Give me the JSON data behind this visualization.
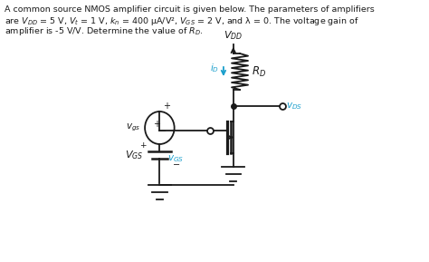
{
  "bg_color": "#ffffff",
  "line_color": "#1a1a1a",
  "cyan_color": "#1a9fcc",
  "text_line1": "A common source NMOS amplifier circuit is given below. The parameters of amplifiers",
  "text_line2": "are $V_{DD}$ = 5 V, $V_t$ = 1 V, $k_n$ = 400 μA/V², $V_{GS}$ = 2 V, and λ = 0. The voltage gain of",
  "text_line3": "amplifier is -5 V/V. Determine the value of Rᴅ.",
  "figsize": [
    4.74,
    2.89
  ],
  "dpi": 100
}
